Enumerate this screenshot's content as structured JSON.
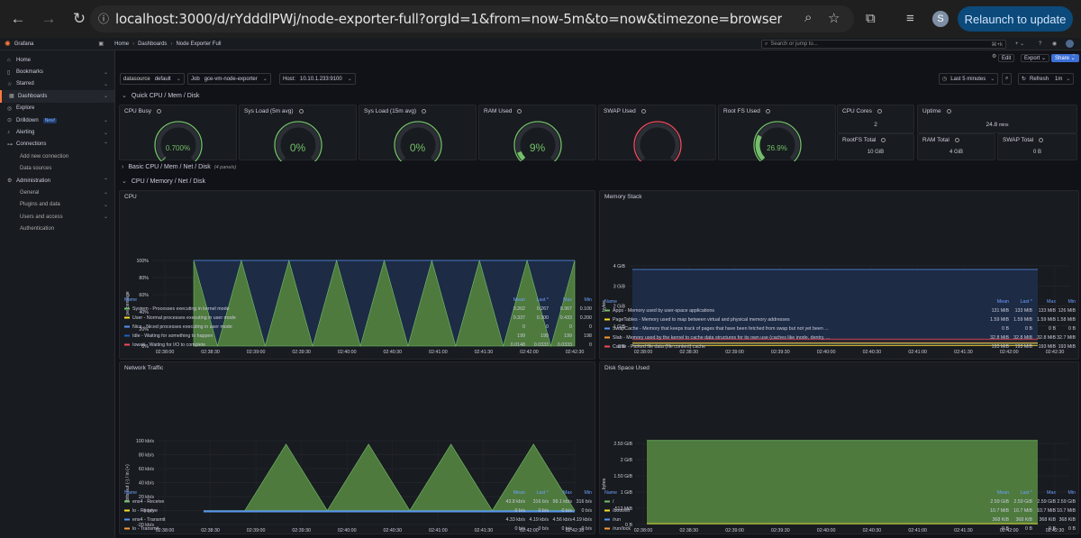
{
  "browser": {
    "url": "localhost:3000/d/rYdddlPWj/node-exporter-full?orgId=1&from=now-5m&to=now&timezone=browser&var-DS_PROMETHEUS=default&...",
    "relaunch": "Relaunch to update",
    "avatar": "S"
  },
  "topbar": {
    "app": "Grafana",
    "crumbs": [
      "Home",
      "Dashboards",
      "Node Exporter Full"
    ],
    "search": "Search or jump to...",
    "shortcut": "⌘+k",
    "edit": "Edit",
    "export": "Export",
    "share": "Share"
  },
  "sidebar": {
    "items": [
      {
        "label": "Home",
        "icon": "home-icon"
      },
      {
        "label": "Bookmarks",
        "icon": "bookmark-icon"
      },
      {
        "label": "Starred",
        "icon": "star-icon"
      },
      {
        "label": "Dashboards",
        "icon": "dashboards-icon"
      },
      {
        "label": "Explore",
        "icon": "compass-icon"
      },
      {
        "label": "Drilldown",
        "icon": "drilldown-icon",
        "badge": "New!"
      },
      {
        "label": "Alerting",
        "icon": "bell-icon"
      },
      {
        "label": "Connections",
        "icon": "plug-icon"
      },
      {
        "label": "Add new connection"
      },
      {
        "label": "Data sources"
      },
      {
        "label": "Administration",
        "icon": "gear-icon"
      },
      {
        "label": "General"
      },
      {
        "label": "Plugins and data"
      },
      {
        "label": "Users and access"
      },
      {
        "label": "Authentication"
      }
    ]
  },
  "vars": {
    "datasource_label": "datasource",
    "datasource": "default",
    "job_label": "Job",
    "job": "gce-vm-node-exporter",
    "host_label": "Host:",
    "host": "10.10.1.233:9100"
  },
  "time": {
    "range": "Last 5 minutes",
    "refresh": "Refresh",
    "interval": "1m"
  },
  "rows": {
    "quick": "Quick CPU / Mem / Disk",
    "basic": "Basic CPU / Mem / Net / Disk",
    "basic_count": "(4 panels)",
    "cpu": "CPU / Memory / Net / Disk"
  },
  "gauges": [
    {
      "title": "CPU Busy",
      "value": "0.700%",
      "pct": 0.007,
      "color": "#73bf69"
    },
    {
      "title": "Sys Load (5m avg)",
      "value": "0%",
      "pct": 0,
      "color": "#73bf69"
    },
    {
      "title": "Sys Load (15m avg)",
      "value": "0%",
      "pct": 0,
      "color": "#73bf69"
    },
    {
      "title": "RAM Used",
      "value": "9%",
      "pct": 0.09,
      "color": "#73bf69"
    },
    {
      "title": "SWAP Used",
      "value": "",
      "pct": 0,
      "color": "#f2495c"
    },
    {
      "title": "Root FS Used",
      "value": "26.9%",
      "pct": 0.269,
      "color": "#73bf69"
    }
  ],
  "stats": [
    {
      "title": "CPU Cores",
      "value": "2"
    },
    {
      "title": "Uptime",
      "value": "24.8",
      "unit": "mins"
    },
    {
      "title": "RootFS Total",
      "value": "10 GiB"
    },
    {
      "title": "RAM Total",
      "value": "4 GiB"
    },
    {
      "title": "SWAP Total",
      "value": "0 B"
    }
  ],
  "legend_cols": {
    "name": "Name",
    "mean": "Mean",
    "last": "Last *",
    "max": "Max",
    "min": "Min"
  },
  "cpu": {
    "title": "CPU",
    "ylabel": "percentage",
    "yticks": [
      "100%",
      "80%",
      "60%",
      "40%",
      "20%",
      "0%"
    ],
    "xticks": [
      "02:38:00",
      "02:38:30",
      "02:39:00",
      "02:39:30",
      "02:40:00",
      "02:40:30",
      "02:41:00",
      "02:41:30",
      "02:42:00",
      "02:42:30"
    ],
    "legend": [
      {
        "name": "System - Processes executing in kernel mode",
        "color": "#73bf69",
        "mean": "0.202",
        "last": "0.267",
        "max": "0.367",
        "min": "0.100"
      },
      {
        "name": "User - Normal processes executing in user mode",
        "color": "#fade2a",
        "mean": "0.337",
        "last": "0.300",
        "max": "0.433",
        "min": "0.200"
      },
      {
        "name": "Nice - Niced processes executing in user mode",
        "color": "#5794f2",
        "mean": "0",
        "last": "0",
        "max": "0",
        "min": "0"
      },
      {
        "name": "Idle - Waiting for something to happen",
        "color": "#1f60c4",
        "mean": "199",
        "last": "199",
        "max": "199",
        "min": "198"
      },
      {
        "name": "Iowait - Waiting for I/O to complete",
        "color": "#f2495c",
        "mean": "0.0148",
        "last": "0.0333",
        "max": "0.0333",
        "min": "0"
      }
    ]
  },
  "memory": {
    "title": "Memory Stack",
    "ylabel": "bytes",
    "yticks": [
      "4 GiB",
      "3 GiB",
      "2 GiB",
      "1 GiB",
      "0 B"
    ],
    "xticks": [
      "02:38:00",
      "02:38:30",
      "02:39:00",
      "02:39:30",
      "02:40:00",
      "02:40:30",
      "02:41:00",
      "02:41:30",
      "02:42:00",
      "02:42:30"
    ],
    "legend": [
      {
        "name": "Apps - Memory used by user-space applications",
        "color": "#73bf69",
        "mean": "131 MiB",
        "last": "133 MiB",
        "max": "133 MiB",
        "min": "126 MiB"
      },
      {
        "name": "PageTables - Memory used to map between virtual and physical memory addresses",
        "color": "#fade2a",
        "mean": "1.59 MiB",
        "last": "1.59 MiB",
        "max": "1.59 MiB",
        "min": "1.58 MiB"
      },
      {
        "name": "SwapCache - Memory that keeps track of pages that have been fetched from swap but not yet been ...",
        "color": "#5794f2",
        "mean": "0 B",
        "last": "0 B",
        "max": "0 B",
        "min": "0 B"
      },
      {
        "name": "Slab - Memory used by the kernel to cache data structures for its own use (caches like inode, dentry, ...",
        "color": "#ff9830",
        "mean": "32.8 MiB",
        "last": "32.8 MiB",
        "max": "32.8 MiB",
        "min": "32.7 MiB"
      },
      {
        "name": "Cache - Parked file data (file content) cache",
        "color": "#f2495c",
        "mean": "193 MiB",
        "last": "193 MiB",
        "max": "193 MiB",
        "min": "193 MiB"
      }
    ]
  },
  "network": {
    "title": "Network Traffic",
    "ylabel": "bits out (-) / in (+)",
    "yticks": [
      "100 kb/s",
      "80 kb/s",
      "60 kb/s",
      "40 kb/s",
      "20 kb/s",
      "0 b/s",
      "-20 kb/s"
    ],
    "xticks": [
      "02:38:00",
      "02:38:30",
      "02:39:00",
      "02:39:30",
      "02:40:00",
      "02:40:30",
      "02:41:00",
      "02:41:30",
      "02:42:00",
      "02:42:30"
    ],
    "legend": [
      {
        "name": "ens4 - Receive",
        "color": "#73bf69",
        "mean": "43.8 kb/s",
        "last": "316 b/s",
        "max": "98.1 kb/s",
        "min": "316 b/s"
      },
      {
        "name": "lo - Receive",
        "color": "#fade2a",
        "mean": "0 b/s",
        "last": "0 b/s",
        "max": "0 b/s",
        "min": "0 b/s"
      },
      {
        "name": "ens4 - Transmit",
        "color": "#5794f2",
        "mean": "4.33 kb/s",
        "last": "4.19 kb/s",
        "max": "4.56 kb/s",
        "min": "4.19 kb/s"
      },
      {
        "name": "lo - Transmit",
        "color": "#ff9830",
        "mean": "0 b/s",
        "last": "0 b/s",
        "max": "0 b/s",
        "min": "0 b/s"
      }
    ]
  },
  "disk": {
    "title": "Disk Space Used",
    "ylabel": "bytes",
    "yticks": [
      "2.50 GiB",
      "2 GiB",
      "1.50 GiB",
      "1 GiB",
      "512 MiB",
      "0 B"
    ],
    "xticks": [
      "02:38:00",
      "02:38:30",
      "02:39:00",
      "02:39:30",
      "02:40:00",
      "02:40:30",
      "02:41:00",
      "02:41:30",
      "02:42:00",
      "02:42:30"
    ],
    "legend": [
      {
        "name": "/",
        "color": "#73bf69",
        "mean": "2.59 GiB",
        "last": "2.59 GiB",
        "max": "2.59 GiB",
        "min": "2.59 GiB"
      },
      {
        "name": "/boot/efi",
        "color": "#fade2a",
        "mean": "10.7 MiB",
        "last": "10.7 MiB",
        "max": "10.7 MiB",
        "min": "10.7 MiB"
      },
      {
        "name": "/run",
        "color": "#5794f2",
        "mean": "368 KiB",
        "last": "368 KiB",
        "max": "368 KiB",
        "min": "368 KiB"
      },
      {
        "name": "/run/lock",
        "color": "#ff9830",
        "mean": "0 B",
        "last": "0 B",
        "max": "0 B",
        "min": "0 B"
      }
    ]
  },
  "chart_data": [
    {
      "type": "area",
      "title": "CPU",
      "ylabel": "percentage",
      "ylim": [
        0,
        100
      ],
      "x": [
        "02:38:00",
        "02:38:30",
        "02:39:00",
        "02:39:30",
        "02:40:00",
        "02:40:30",
        "02:41:00",
        "02:41:30",
        "02:42:00",
        "02:42:30"
      ],
      "series": [
        {
          "name": "Idle - Waiting for something to happen",
          "values_pct_peak": [
            100,
            0,
            100,
            0,
            100,
            0,
            100,
            0,
            100,
            0,
            100,
            0,
            100,
            0,
            100,
            0,
            100
          ]
        }
      ]
    },
    {
      "type": "area",
      "title": "Network Traffic",
      "ylabel": "bits out (-) / in (+)",
      "ylim": [
        -20,
        100
      ],
      "series": [
        {
          "name": "ens4 - Receive",
          "values_kbps": [
            0,
            0,
            95,
            0,
            95,
            0,
            95,
            0,
            95,
            0
          ]
        }
      ]
    },
    {
      "type": "area",
      "title": "Memory Stack",
      "ylabel": "bytes",
      "ylim": [
        0,
        4
      ]
    },
    {
      "type": "area",
      "title": "Disk Space Used",
      "ylabel": "bytes",
      "ylim": [
        0,
        2.6
      ]
    }
  ]
}
